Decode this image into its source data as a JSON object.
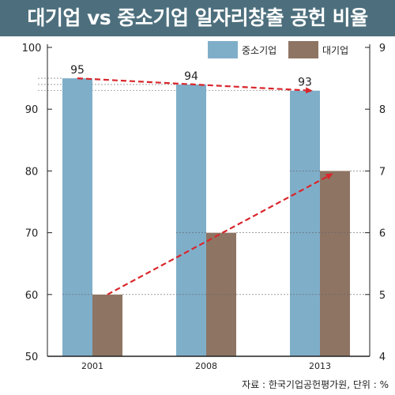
{
  "header": {
    "title": "대기업 vs 중소기업 일자리창출 공헌 비율",
    "background_color": "#4d6f7d"
  },
  "source_note": "자료 : 한국기업공헌평가원, 단위 : %",
  "chart_data": {
    "type": "bar",
    "categories": [
      "2001",
      "2008",
      "2013"
    ],
    "series": [
      {
        "name": "중소기업",
        "axis": "left",
        "color": "#7faec9",
        "values": [
          95,
          94,
          93
        ]
      },
      {
        "name": "대기업",
        "axis": "right",
        "color": "#8e7463",
        "values": [
          5,
          6,
          7
        ]
      }
    ],
    "y_left": {
      "min": 50,
      "max": 100,
      "ticks": [
        "100",
        "90",
        "80",
        "70",
        "60",
        "50"
      ]
    },
    "y_right": {
      "min": 4,
      "max": 9,
      "ticks": [
        "9",
        "8",
        "7",
        "6",
        "5",
        "4"
      ]
    },
    "value_labels": [
      "95",
      "94",
      "93"
    ],
    "legend_position": "top-right",
    "trend_arrows": true,
    "arrow_color": "#d9262b"
  }
}
